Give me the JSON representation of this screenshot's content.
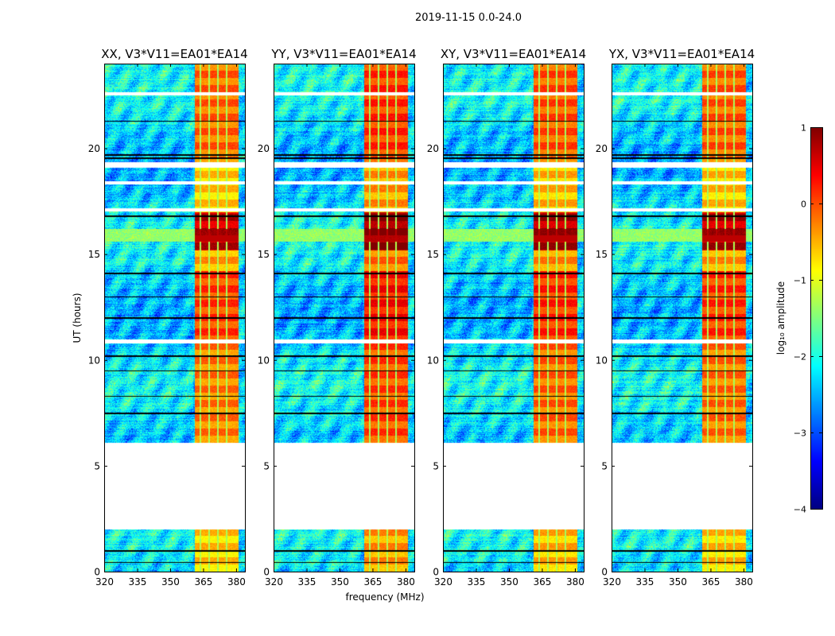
{
  "chart_data": {
    "type": "heatmap",
    "title": "2019-11-15 0.0-24.0",
    "xlabel": "frequency (MHz)",
    "ylabel": "UT (hours)",
    "xlim": [
      320,
      384
    ],
    "ylim": [
      0,
      24
    ],
    "xticks": [
      "320",
      "335",
      "350",
      "365",
      "380"
    ],
    "xtick_values": [
      320,
      335,
      350,
      365,
      380
    ],
    "yticks": [
      "0",
      "5",
      "10",
      "15",
      "20"
    ],
    "ytick_values": [
      0,
      5,
      10,
      15,
      20
    ],
    "panels": [
      {
        "title": "XX, V3*V11=EA01*EA14",
        "band_boost": 0.0
      },
      {
        "title": "YY, V3*V11=EA01*EA14",
        "band_boost": 0.25
      },
      {
        "title": "XY, V3*V11=EA01*EA14",
        "band_boost": 0.1
      },
      {
        "title": "YX, V3*V11=EA01*EA14",
        "band_boost": 0.05
      }
    ],
    "colorbar": {
      "label": "log₁₀ amplitude",
      "range": [
        -4,
        1
      ],
      "ticks": [
        "1",
        "0",
        "−1",
        "−2",
        "−3",
        "−4"
      ],
      "tick_values": [
        1,
        0,
        -1,
        -2,
        -3,
        -4
      ],
      "colormap": "jet"
    },
    "background_level": -2.3,
    "rfi_band_mhz": [
      361,
      381
    ],
    "rfi_band_levels": [
      {
        "from_h": 0.0,
        "to_h": 2.0,
        "value": -0.6
      },
      {
        "from_h": 6.1,
        "to_h": 10.8,
        "value": -0.2
      },
      {
        "from_h": 11.0,
        "to_h": 14.2,
        "value": 0.1
      },
      {
        "from_h": 14.2,
        "to_h": 15.2,
        "value": -0.4
      },
      {
        "from_h": 15.2,
        "to_h": 17.0,
        "value": 0.7
      },
      {
        "from_h": 17.0,
        "to_h": 19.5,
        "value": -0.6
      },
      {
        "from_h": 19.5,
        "to_h": 24.0,
        "value": -0.1
      }
    ],
    "broadband_rfi": [
      {
        "from_h": 15.6,
        "to_h": 16.2,
        "value": 0.3
      }
    ],
    "flagged_intervals_h": [
      [
        2.0,
        6.1
      ],
      [
        10.8,
        11.0
      ],
      [
        17.05,
        17.2
      ],
      [
        18.3,
        18.45
      ],
      [
        19.1,
        19.35
      ],
      [
        22.5,
        22.65
      ]
    ],
    "black_lines_h": [
      0.45,
      1.0,
      7.5,
      8.3,
      9.5,
      10.2,
      12.0,
      13.0,
      14.1,
      16.8,
      19.55,
      19.7,
      21.3
    ]
  }
}
